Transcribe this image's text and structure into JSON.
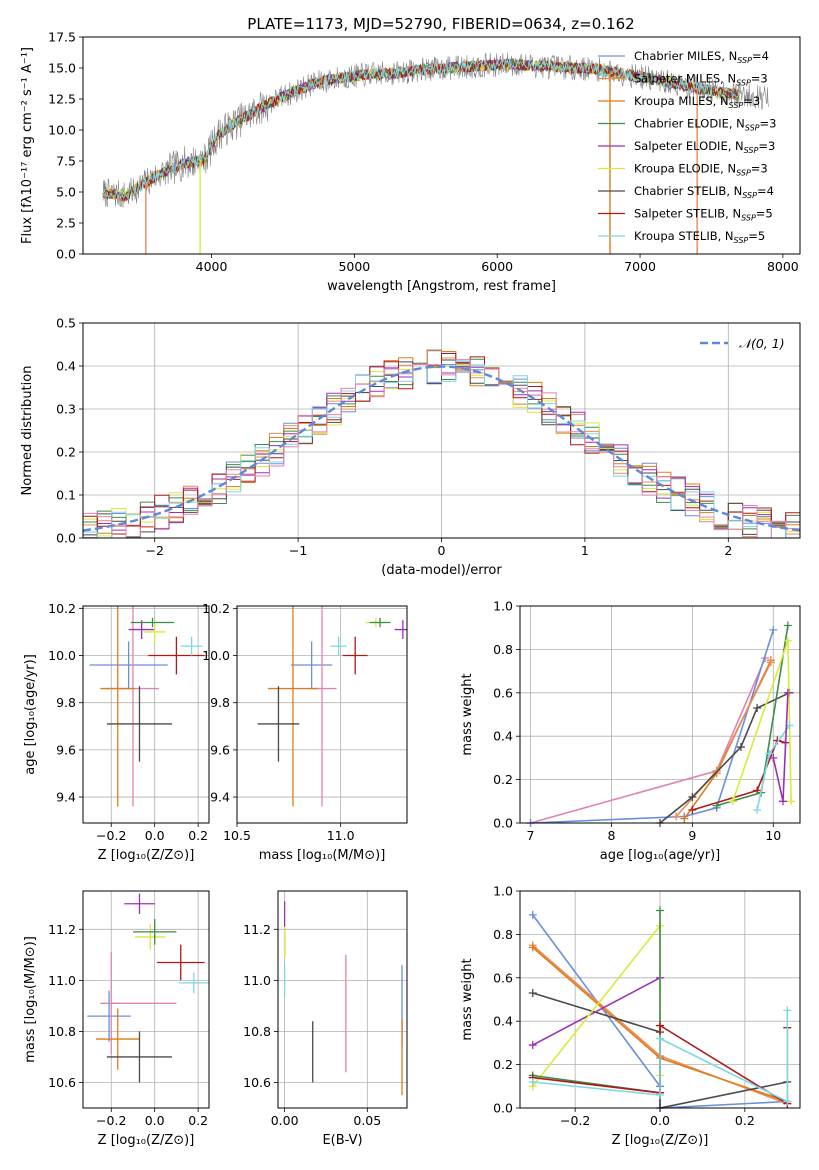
{
  "title": "PLATE=1173, MJD=52790, FIBERID=0634, z=0.162",
  "colors": {
    "chabrier_miles": "#6a8fdc",
    "salpeter_miles": "#e88a5a",
    "kroupa_miles": "#e07b1a",
    "chabrier_elodie": "#3c8c4c",
    "salpeter_elodie": "#9b30b8",
    "kroupa_elodie": "#d9ea3a",
    "chabrier_stelib": "#4a4a4a",
    "salpeter_stelib": "#b01818",
    "kroupa_stelib": "#7fd8e0",
    "pink": "#e083b3",
    "data": "#808080",
    "gauss": "#5a8ad8",
    "grid": "#b0b0b0"
  },
  "chart_data": [
    {
      "id": "spectrum",
      "type": "line",
      "title": "PLATE=1173, MJD=52790, FIBERID=0634, z=0.162",
      "xlabel": "wavelength [Angstrom, rest frame]",
      "ylabel": "Flux [fλ10⁻¹⁷ erg cm⁻² s⁻¹ A⁻¹]",
      "xlim": [
        3100,
        8120
      ],
      "ylim": [
        0,
        17.5
      ],
      "xticks": [
        4000,
        5000,
        6000,
        7000,
        8000
      ],
      "xtick_labels": [
        "4000",
        "5000",
        "6000",
        "7000",
        "8000"
      ],
      "yticks": [
        0,
        2.5,
        5,
        7.5,
        10,
        12.5,
        15,
        17.5
      ],
      "ytick_labels": [
        "0.0",
        "2.5",
        "5.0",
        "7.5",
        "10.0",
        "12.5",
        "15.0",
        "17.5"
      ],
      "grid": false,
      "legend_position": "top-right",
      "continuum": {
        "x": [
          3200,
          3400,
          3600,
          3800,
          3950,
          4050,
          4200,
          4350,
          4500,
          4700,
          4900,
          5100,
          5300,
          5500,
          5800,
          6100,
          6400,
          6700,
          7000,
          7300,
          7600,
          7900
        ],
        "y": [
          5.0,
          4.7,
          6.2,
          7.3,
          7.6,
          9.7,
          10.8,
          11.8,
          12.7,
          13.7,
          14.2,
          14.5,
          14.6,
          14.9,
          15.1,
          15.3,
          15.1,
          14.9,
          14.3,
          13.6,
          13.0,
          12.6
        ]
      },
      "series": [
        {
          "name": "Chabrier MILES, N_SSP=4",
          "legend_label": "Chabrier MILES, N",
          "n_ssp": "SSP",
          "n_value": "=4",
          "color_key": "chabrier_miles"
        },
        {
          "name": "Salpeter MILES, N_SSP=3",
          "legend_label": "Salpeter MILES, N",
          "n_ssp": "SSP",
          "n_value": "=3",
          "color_key": "salpeter_miles"
        },
        {
          "name": "Kroupa MILES, N_SSP=3",
          "legend_label": "Kroupa MILES, N",
          "n_ssp": "SSP",
          "n_value": "=3",
          "color_key": "kroupa_miles"
        },
        {
          "name": "Chabrier ELODIE, N_SSP=3",
          "legend_label": "Chabrier ELODIE, N",
          "n_ssp": "SSP",
          "n_value": "=3",
          "color_key": "chabrier_elodie"
        },
        {
          "name": "Salpeter ELODIE, N_SSP=3",
          "legend_label": "Salpeter ELODIE, N",
          "n_ssp": "SSP",
          "n_value": "=3",
          "color_key": "salpeter_elodie"
        },
        {
          "name": "Kroupa ELODIE, N_SSP=3",
          "legend_label": "Kroupa ELODIE, N",
          "n_ssp": "SSP",
          "n_value": "=3",
          "color_key": "kroupa_elodie"
        },
        {
          "name": "Chabrier STELIB, N_SSP=4",
          "legend_label": "Chabrier STELIB, N",
          "n_ssp": "SSP",
          "n_value": "=4",
          "color_key": "chabrier_stelib"
        },
        {
          "name": "Salpeter STELIB, N_SSP=5",
          "legend_label": "Salpeter STELIB, N",
          "n_ssp": "SSP",
          "n_value": "=5",
          "color_key": "salpeter_stelib"
        },
        {
          "name": "Kroupa STELIB, N_SSP=5",
          "legend_label": "Kroupa STELIB, N",
          "n_ssp": "SSP",
          "n_value": "=5",
          "color_key": "kroupa_stelib"
        }
      ],
      "dropouts": [
        {
          "x": 3540,
          "color_key": "salpeter_miles"
        },
        {
          "x": 3920,
          "color_key": "kroupa_elodie"
        },
        {
          "x": 6790,
          "color_key": "kroupa_miles"
        },
        {
          "x": 7400,
          "color_key": "salpeter_miles"
        }
      ]
    },
    {
      "id": "residuals",
      "type": "histogram",
      "xlabel": "(data-model)/error",
      "ylabel": "Normed distribution",
      "xlim": [
        -2.5,
        2.5
      ],
      "ylim": [
        0,
        0.5
      ],
      "xticks": [
        -2,
        -1,
        0,
        1,
        2
      ],
      "xtick_labels": [
        "−2",
        "−1",
        "0",
        "1",
        "2"
      ],
      "yticks": [
        0,
        0.1,
        0.2,
        0.3,
        0.4,
        0.5
      ],
      "ytick_labels": [
        "0.0",
        "0.1",
        "0.2",
        "0.3",
        "0.4",
        "0.5"
      ],
      "grid": true,
      "legend_position": "top-right",
      "gauss_label": "𝒩(0, 1)",
      "bin_width": 0.1
    },
    {
      "id": "age_vs_z",
      "type": "errorbar",
      "xlabel": "Z [log₁₀(Z/Z⊙)]",
      "ylabel": "age  [log₁₀(age/yr)]",
      "xlim": [
        -0.33,
        0.25
      ],
      "ylim": [
        9.29,
        10.21
      ],
      "xticks": [
        -0.2,
        0.0,
        0.2
      ],
      "xtick_labels": [
        "−0.2",
        "0.0",
        "0.2"
      ],
      "yticks": [
        9.4,
        9.6,
        9.8,
        10.0,
        10.2
      ],
      "ytick_labels": [
        "9.4",
        "9.6",
        "9.8",
        "10.0",
        "10.2"
      ],
      "grid": true,
      "points": [
        {
          "x": -0.12,
          "y": 9.96,
          "xerr": 0.18,
          "yerr": 0.1,
          "color_key": "chabrier_miles"
        },
        {
          "x": -0.1,
          "y": 9.86,
          "xerr": 0.12,
          "yerr": 0.5,
          "color_key": "pink"
        },
        {
          "x": -0.17,
          "y": 9.86,
          "xerr": 0.08,
          "yerr": 0.5,
          "color_key": "kroupa_miles"
        },
        {
          "x": -0.07,
          "y": 9.71,
          "xerr": 0.15,
          "yerr": 0.16,
          "color_key": "chabrier_stelib"
        },
        {
          "x": 0.1,
          "y": 10.0,
          "xerr": 0.13,
          "yerr": 0.08,
          "color_key": "salpeter_stelib"
        },
        {
          "x": 0.17,
          "y": 10.04,
          "xerr": 0.05,
          "yerr": 0.04,
          "color_key": "kroupa_stelib"
        },
        {
          "x": -0.06,
          "y": 10.11,
          "xerr": 0.06,
          "yerr": 0.04,
          "color_key": "salpeter_elodie"
        },
        {
          "x": 0.0,
          "y": 10.1,
          "xerr": 0.05,
          "yerr": 0.05,
          "color_key": "kroupa_elodie"
        },
        {
          "x": -0.01,
          "y": 10.14,
          "xerr": 0.1,
          "yerr": 0.02,
          "color_key": "chabrier_elodie"
        }
      ]
    },
    {
      "id": "age_vs_mass",
      "type": "errorbar",
      "xlabel": "mass [log₁₀(M/M⊙)]",
      "ylabel": "",
      "xlim": [
        10.5,
        11.32
      ],
      "ylim": [
        9.29,
        10.21
      ],
      "xticks": [
        10.5,
        11.0
      ],
      "xtick_labels": [
        "10.5",
        "11.0"
      ],
      "yticks": [
        9.4,
        9.6,
        9.8,
        10.0,
        10.2
      ],
      "ytick_labels": [
        "9.4",
        "9.6",
        "9.8",
        "10.0",
        "10.2"
      ],
      "grid": true,
      "points": [
        {
          "x": 10.86,
          "y": 9.96,
          "xerr": 0.1,
          "yerr": 0.1,
          "color_key": "chabrier_miles"
        },
        {
          "x": 10.91,
          "y": 9.86,
          "xerr": 0.07,
          "yerr": 0.5,
          "color_key": "pink"
        },
        {
          "x": 10.77,
          "y": 9.86,
          "xerr": 0.12,
          "yerr": 0.5,
          "color_key": "kroupa_miles"
        },
        {
          "x": 10.7,
          "y": 9.71,
          "xerr": 0.1,
          "yerr": 0.16,
          "color_key": "chabrier_stelib"
        },
        {
          "x": 11.07,
          "y": 10.0,
          "xerr": 0.06,
          "yerr": 0.08,
          "color_key": "salpeter_stelib"
        },
        {
          "x": 10.99,
          "y": 10.04,
          "xerr": 0.04,
          "yerr": 0.04,
          "color_key": "kroupa_stelib"
        },
        {
          "x": 11.3,
          "y": 10.11,
          "xerr": 0.04,
          "yerr": 0.04,
          "color_key": "salpeter_elodie"
        },
        {
          "x": 11.17,
          "y": 10.14,
          "xerr": 0.05,
          "yerr": 0.02,
          "color_key": "kroupa_elodie"
        },
        {
          "x": 11.19,
          "y": 10.14,
          "xerr": 0.05,
          "yerr": 0.02,
          "color_key": "chabrier_elodie"
        }
      ]
    },
    {
      "id": "weight_vs_age",
      "type": "line",
      "xlabel": "age  [log₁₀(age/yr)]",
      "ylabel": "mass weight",
      "xlim": [
        6.87,
        10.33
      ],
      "ylim": [
        0,
        1.0
      ],
      "xticks": [
        7,
        8,
        9,
        10
      ],
      "xtick_labels": [
        "7",
        "8",
        "9",
        "10"
      ],
      "yticks": [
        0,
        0.2,
        0.4,
        0.6,
        0.8,
        1.0
      ],
      "ytick_labels": [
        "0.0",
        "0.2",
        "0.4",
        "0.6",
        "0.8",
        "1.0"
      ],
      "grid": true,
      "series": [
        {
          "color_key": "pink",
          "x": [
            7.0,
            9.3,
            9.9
          ],
          "y": [
            0.0,
            0.24,
            0.76
          ]
        },
        {
          "color_key": "chabrier_miles",
          "x": [
            7.0,
            8.9,
            9.3,
            10.0
          ],
          "y": [
            0.0,
            0.03,
            0.07,
            0.89
          ]
        },
        {
          "color_key": "kroupa_miles",
          "x": [
            8.9,
            9.3,
            9.97
          ],
          "y": [
            0.02,
            0.23,
            0.75
          ]
        },
        {
          "color_key": "salpeter_miles",
          "x": [
            8.8,
            9.3,
            9.97
          ],
          "y": [
            0.03,
            0.24,
            0.74
          ]
        },
        {
          "color_key": "chabrier_stelib",
          "x": [
            8.6,
            9.0,
            9.6,
            9.8,
            10.2
          ],
          "y": [
            0.0,
            0.12,
            0.35,
            0.53,
            0.6
          ]
        },
        {
          "color_key": "salpeter_stelib",
          "x": [
            9.0,
            9.8,
            10.05,
            10.15
          ],
          "y": [
            0.06,
            0.15,
            0.38,
            0.37
          ]
        },
        {
          "color_key": "chabrier_elodie",
          "x": [
            9.3,
            9.85,
            10.18
          ],
          "y": [
            0.08,
            0.14,
            0.91
          ]
        },
        {
          "color_key": "kroupa_elodie",
          "x": [
            9.5,
            10.18,
            10.22
          ],
          "y": [
            0.1,
            0.84,
            0.1
          ]
        },
        {
          "color_key": "kroupa_stelib",
          "x": [
            9.8,
            9.95,
            10.2
          ],
          "y": [
            0.06,
            0.32,
            0.45
          ]
        },
        {
          "color_key": "salpeter_elodie",
          "x": [
            10.0,
            10.12,
            10.18
          ],
          "y": [
            0.3,
            0.1,
            0.6
          ]
        }
      ]
    },
    {
      "id": "mass_vs_z",
      "type": "errorbar",
      "xlabel": "Z [log₁₀(Z/Z⊙)]",
      "ylabel": "mass [log₁₀(M/M⊙)]",
      "xlim": [
        -0.33,
        0.25
      ],
      "ylim": [
        10.5,
        11.35
      ],
      "xticks": [
        -0.2,
        0.0,
        0.2
      ],
      "xtick_labels": [
        "−0.2",
        "0.0",
        "0.2"
      ],
      "yticks": [
        10.6,
        10.8,
        11.0,
        11.2
      ],
      "ytick_labels": [
        "10.6",
        "10.8",
        "11.0",
        "11.2"
      ],
      "grid": true,
      "points": [
        {
          "x": -0.21,
          "y": 10.86,
          "xerr": 0.1,
          "yerr": 0.1,
          "color_key": "chabrier_miles"
        },
        {
          "x": -0.2,
          "y": 10.91,
          "xerr": 0.05,
          "yerr": 0.2,
          "color_key": "pink"
        },
        {
          "x": -0.05,
          "y": 10.91,
          "xerr": 0.15,
          "yerr": 0.0,
          "color_key": "pink"
        },
        {
          "x": -0.17,
          "y": 10.77,
          "xerr": 0.1,
          "yerr": 0.12,
          "color_key": "kroupa_miles"
        },
        {
          "x": -0.07,
          "y": 10.7,
          "xerr": 0.15,
          "yerr": 0.1,
          "color_key": "chabrier_stelib"
        },
        {
          "x": 0.12,
          "y": 11.07,
          "xerr": 0.11,
          "yerr": 0.07,
          "color_key": "salpeter_stelib"
        },
        {
          "x": 0.18,
          "y": 10.99,
          "xerr": 0.07,
          "yerr": 0.04,
          "color_key": "kroupa_stelib"
        },
        {
          "x": -0.07,
          "y": 11.3,
          "xerr": 0.07,
          "yerr": 0.04,
          "color_key": "salpeter_elodie"
        },
        {
          "x": -0.02,
          "y": 11.17,
          "xerr": 0.07,
          "yerr": 0.05,
          "color_key": "kroupa_elodie"
        },
        {
          "x": 0.0,
          "y": 11.19,
          "xerr": 0.1,
          "yerr": 0.05,
          "color_key": "chabrier_elodie"
        }
      ]
    },
    {
      "id": "mass_vs_ebv",
      "type": "errorbar",
      "xlabel": "E(B-V)",
      "ylabel": "",
      "xlim": [
        -0.004,
        0.074
      ],
      "ylim": [
        10.5,
        11.35
      ],
      "xticks": [
        0.0,
        0.05
      ],
      "xtick_labels": [
        "0.00",
        "0.05"
      ],
      "yticks": [
        10.6,
        10.8,
        11.0,
        11.2
      ],
      "ytick_labels": [
        "10.6",
        "10.8",
        "11.0",
        "11.2"
      ],
      "grid": true,
      "points": [
        {
          "x": 0.0,
          "y": 11.2,
          "xerr": 0,
          "yerr": 0.11,
          "color_key": "salpeter_elodie"
        },
        {
          "x": 0.0,
          "y": 11.15,
          "xerr": 0,
          "yerr": 0.06,
          "color_key": "kroupa_elodie"
        },
        {
          "x": 0.0,
          "y": 11.0,
          "xerr": 0,
          "yerr": 0.07,
          "color_key": "kroupa_stelib"
        },
        {
          "x": 0.017,
          "y": 10.72,
          "xerr": 0,
          "yerr": 0.12,
          "color_key": "chabrier_stelib"
        },
        {
          "x": 0.037,
          "y": 10.87,
          "xerr": 0,
          "yerr": 0.23,
          "color_key": "pink"
        },
        {
          "x": 0.071,
          "y": 10.9,
          "xerr": 0,
          "yerr": 0.16,
          "color_key": "chabrier_miles"
        },
        {
          "x": 0.071,
          "y": 10.7,
          "xerr": 0,
          "yerr": 0.15,
          "color_key": "kroupa_miles"
        }
      ]
    },
    {
      "id": "weight_vs_z",
      "type": "line",
      "xlabel": "Z [log₁₀(Z/Z⊙)]",
      "ylabel": "mass weight",
      "xlim": [
        -0.33,
        0.33
      ],
      "ylim": [
        0,
        1.0
      ],
      "xticks": [
        -0.2,
        0.0,
        0.2
      ],
      "xtick_labels": [
        "−0.2",
        "0.0",
        "0.2"
      ],
      "yticks": [
        0,
        0.2,
        0.4,
        0.6,
        0.8,
        1.0
      ],
      "ytick_labels": [
        "0.0",
        "0.2",
        "0.4",
        "0.6",
        "0.8",
        "1.0"
      ],
      "grid": true,
      "series": [
        {
          "color_key": "chabrier_miles",
          "x": [
            -0.3,
            0.0,
            0.0,
            0.3
          ],
          "y": [
            0.89,
            0.1,
            0.0,
            0.03
          ]
        },
        {
          "color_key": "salpeter_miles",
          "x": [
            -0.3,
            0.0,
            0.3
          ],
          "y": [
            0.75,
            0.24,
            0.02
          ]
        },
        {
          "color_key": "kroupa_miles",
          "x": [
            -0.3,
            0.0,
            0.3
          ],
          "y": [
            0.74,
            0.23,
            0.03
          ]
        },
        {
          "color_key": "chabrier_stelib",
          "x": [
            -0.3,
            0.0,
            0.0,
            0.3
          ],
          "y": [
            0.53,
            0.35,
            0.0,
            0.12
          ]
        },
        {
          "color_key": "salpeter_elodie",
          "x": [
            -0.3,
            0.0
          ],
          "y": [
            0.29,
            0.6
          ]
        },
        {
          "color_key": "kroupa_elodie",
          "x": [
            -0.3,
            0.0,
            0.0
          ],
          "y": [
            0.1,
            0.84,
            0.15
          ]
        },
        {
          "color_key": "chabrier_elodie",
          "x": [
            -0.3,
            0.0,
            0.0
          ],
          "y": [
            0.15,
            0.07,
            0.91
          ]
        },
        {
          "color_key": "salpeter_stelib",
          "x": [
            -0.3,
            0.0,
            0.0,
            0.3,
            0.3
          ],
          "y": [
            0.14,
            0.07,
            0.38,
            0.02,
            0.37
          ]
        },
        {
          "color_key": "kroupa_stelib",
          "x": [
            -0.3,
            0.0,
            0.0,
            0.3,
            0.3
          ],
          "y": [
            0.12,
            0.06,
            0.32,
            0.03,
            0.45
          ]
        }
      ]
    }
  ]
}
